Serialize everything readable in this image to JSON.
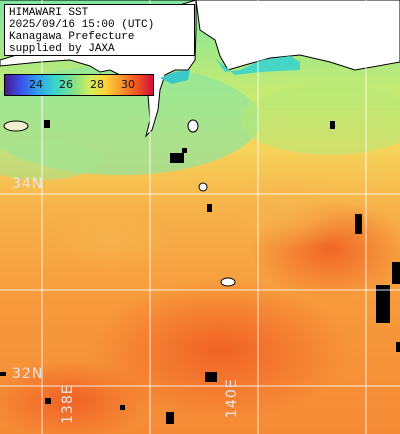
{
  "title": {
    "line1": "HIMAWARI SST",
    "line2": "2025/09/16 15:00 (UTC)",
    "line3": "Kanagawa Prefecture",
    "line4": "supplied by JAXA"
  },
  "legend": {
    "ticks": [
      "24",
      "26",
      "28",
      "30"
    ]
  },
  "grid_labels": {
    "lat_34": "34N",
    "lat_32": "32N",
    "lon_138": "138E",
    "lon_140": "140E"
  }
}
